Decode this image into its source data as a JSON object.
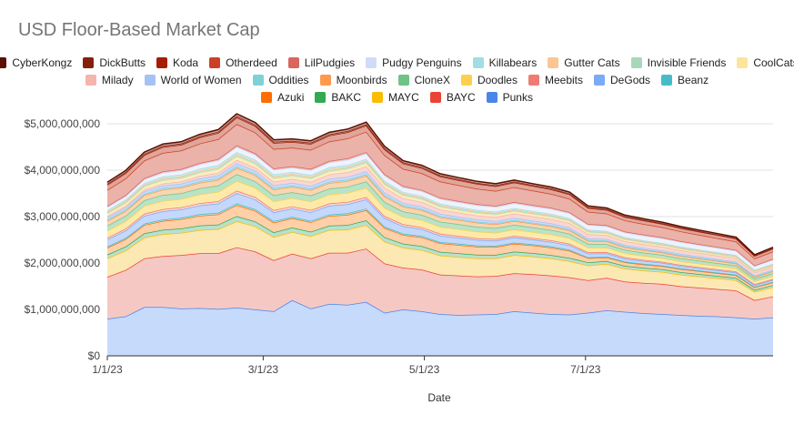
{
  "chart_data": {
    "type": "area",
    "stacked": true,
    "title": "USD Floor-Based Market Cap",
    "xlabel": "Date",
    "ylabel": "",
    "x_range": [
      "2023-01-01",
      "2023-09-10"
    ],
    "ylim": [
      0,
      5000000000
    ],
    "y_ticks": [
      "$0",
      "$1,000,000,000",
      "$2,000,000,000",
      "$3,000,000,000",
      "$4,000,000,000",
      "$5,000,000,000"
    ],
    "x_ticks": [
      "1/1/23",
      "3/1/23",
      "5/1/23",
      "7/1/23"
    ],
    "x_tick_dates": [
      "2023-01-01",
      "2023-03-01",
      "2023-05-01",
      "2023-07-01"
    ],
    "grid": true,
    "legend_position": "top",
    "dates": [
      "2023-01-01",
      "2023-01-08",
      "2023-01-15",
      "2023-01-22",
      "2023-01-29",
      "2023-02-05",
      "2023-02-12",
      "2023-02-19",
      "2023-02-26",
      "2023-03-05",
      "2023-03-12",
      "2023-03-19",
      "2023-03-26",
      "2023-04-02",
      "2023-04-09",
      "2023-04-16",
      "2023-04-23",
      "2023-04-30",
      "2023-05-07",
      "2023-05-14",
      "2023-05-21",
      "2023-05-28",
      "2023-06-04",
      "2023-06-11",
      "2023-06-18",
      "2023-06-25",
      "2023-07-02",
      "2023-07-09",
      "2023-07-16",
      "2023-07-23",
      "2023-07-30",
      "2023-08-06",
      "2023-08-13",
      "2023-08-20",
      "2023-08-27",
      "2023-09-03",
      "2023-09-10"
    ],
    "series": [
      {
        "name": "Punks",
        "color": "#c6dafc",
        "line": "#4a86e8",
        "values": [
          800,
          850,
          1050,
          1050,
          1020,
          1030,
          1010,
          1040,
          1000,
          960,
          1200,
          1020,
          1120,
          1100,
          1160,
          930,
          1000,
          960,
          900,
          880,
          890,
          900,
          960,
          930,
          900,
          890,
          930,
          980,
          950,
          920,
          900,
          880,
          860,
          850,
          830,
          800,
          830
        ]
      },
      {
        "name": "BAYC",
        "color": "#f6c8c4",
        "line": "#ea4335",
        "values": [
          900,
          1000,
          1050,
          1100,
          1150,
          1180,
          1200,
          1300,
          1250,
          1100,
          1000,
          1080,
          1100,
          1120,
          1150,
          1060,
          900,
          900,
          850,
          850,
          820,
          820,
          820,
          830,
          830,
          800,
          700,
          700,
          650,
          650,
          650,
          620,
          610,
          590,
          580,
          400,
          450
        ]
      },
      {
        "name": "MAYC",
        "color": "#fce8b2",
        "line": "#fbbc04",
        "values": [
          400,
          420,
          450,
          470,
          480,
          500,
          520,
          560,
          540,
          500,
          470,
          480,
          490,
          500,
          510,
          470,
          430,
          420,
          410,
          400,
          390,
          380,
          390,
          380,
          370,
          350,
          320,
          300,
          280,
          270,
          260,
          250,
          240,
          230,
          220,
          180,
          200
        ]
      },
      {
        "name": "BAKC",
        "color": "#b7e1cd",
        "line": "#34a853",
        "values": [
          80,
          85,
          90,
          95,
          95,
          100,
          100,
          110,
          105,
          100,
          95,
          95,
          95,
          100,
          100,
          95,
          85,
          85,
          80,
          80,
          78,
          76,
          76,
          75,
          73,
          70,
          66,
          62,
          60,
          58,
          56,
          54,
          52,
          50,
          48,
          42,
          45
        ]
      },
      {
        "name": "Azuki",
        "color": "#ffd0a8",
        "line": "#ff6d01",
        "values": [
          150,
          160,
          180,
          190,
          200,
          210,
          220,
          240,
          230,
          210,
          200,
          205,
          210,
          220,
          220,
          200,
          190,
          190,
          185,
          180,
          175,
          170,
          170,
          165,
          160,
          155,
          90,
          80,
          75,
          70,
          68,
          66,
          64,
          62,
          60,
          55,
          58
        ]
      },
      {
        "name": "Beanz",
        "color": "#b4e4ea",
        "line": "#46bdc6",
        "values": [
          25,
          26,
          28,
          30,
          30,
          32,
          33,
          35,
          34,
          32,
          30,
          30,
          31,
          32,
          32,
          30,
          28,
          27,
          26,
          25,
          25,
          24,
          24,
          23,
          23,
          22,
          18,
          16,
          15,
          15,
          14,
          14,
          13,
          13,
          12,
          11,
          12
        ]
      },
      {
        "name": "DeGods",
        "color": "#c4d8fb",
        "line": "#7baaf7",
        "values": [
          150,
          160,
          170,
          180,
          180,
          190,
          200,
          220,
          210,
          190,
          180,
          185,
          190,
          195,
          200,
          180,
          160,
          150,
          140,
          130,
          120,
          110,
          110,
          100,
          100,
          95,
          80,
          70,
          65,
          60,
          55,
          52,
          50,
          48,
          46,
          40,
          42
        ]
      },
      {
        "name": "Meebits",
        "color": "#fad2cf",
        "line": "#f07b72",
        "values": [
          40,
          42,
          44,
          46,
          46,
          48,
          50,
          54,
          52,
          48,
          46,
          47,
          48,
          49,
          50,
          46,
          42,
          41,
          40,
          39,
          38,
          37,
          37,
          36,
          35,
          34,
          30,
          28,
          27,
          26,
          25,
          24,
          23,
          22,
          21,
          18,
          20
        ]
      },
      {
        "name": "Doodles",
        "color": "#fdeaa8",
        "line": "#fcd04f",
        "values": [
          150,
          160,
          170,
          180,
          180,
          190,
          200,
          210,
          200,
          190,
          180,
          185,
          190,
          195,
          200,
          180,
          160,
          155,
          150,
          145,
          140,
          135,
          135,
          130,
          125,
          120,
          100,
          95,
          90,
          85,
          80,
          78,
          75,
          72,
          70,
          62,
          66
        ]
      },
      {
        "name": "CloneX",
        "color": "#b9e3c6",
        "line": "#71c287",
        "values": [
          110,
          115,
          120,
          125,
          125,
          130,
          135,
          145,
          140,
          130,
          125,
          128,
          130,
          133,
          135,
          125,
          115,
          112,
          110,
          108,
          105,
          102,
          102,
          100,
          98,
          95,
          80,
          75,
          72,
          70,
          68,
          66,
          64,
          62,
          60,
          52,
          56
        ]
      },
      {
        "name": "Moonbirds",
        "color": "#fbd5b0",
        "line": "#ff994d",
        "values": [
          100,
          105,
          110,
          115,
          115,
          120,
          125,
          135,
          130,
          120,
          115,
          117,
          120,
          122,
          125,
          115,
          105,
          100,
          95,
          90,
          85,
          80,
          80,
          78,
          75,
          72,
          62,
          58,
          55,
          52,
          50,
          48,
          46,
          44,
          42,
          36,
          40
        ]
      },
      {
        "name": "Oddities",
        "color": "#b8e6ea",
        "line": "#7ed1d7",
        "values": [
          25,
          26,
          28,
          30,
          30,
          32,
          33,
          35,
          34,
          32,
          30,
          30,
          31,
          32,
          32,
          30,
          28,
          27,
          26,
          25,
          25,
          24,
          24,
          23,
          23,
          22,
          20,
          19,
          18,
          18,
          17,
          17,
          16,
          16,
          15,
          13,
          14
        ]
      },
      {
        "name": "World of Women",
        "color": "#c9dbfa",
        "line": "#a4c2f4",
        "values": [
          50,
          52,
          55,
          58,
          58,
          60,
          62,
          66,
          64,
          60,
          57,
          58,
          59,
          60,
          61,
          57,
          52,
          50,
          48,
          46,
          45,
          44,
          44,
          43,
          42,
          40,
          36,
          34,
          32,
          31,
          30,
          29,
          28,
          27,
          26,
          22,
          24
        ]
      },
      {
        "name": "Milady",
        "color": "#f9d6d3",
        "line": "#f4b5ae",
        "values": [
          30,
          35,
          40,
          45,
          50,
          55,
          60,
          70,
          70,
          80,
          85,
          90,
          95,
          100,
          110,
          105,
          100,
          100,
          95,
          90,
          90,
          90,
          95,
          95,
          95,
          95,
          90,
          85,
          80,
          80,
          78,
          76,
          74,
          72,
          70,
          60,
          65
        ]
      },
      {
        "name": "CoolCats",
        "color": "#fcefbf",
        "line": "#fde49b",
        "values": [
          50,
          52,
          55,
          58,
          58,
          60,
          62,
          66,
          64,
          60,
          57,
          58,
          59,
          60,
          61,
          57,
          52,
          50,
          48,
          46,
          45,
          44,
          44,
          43,
          42,
          40,
          36,
          34,
          32,
          31,
          30,
          29,
          28,
          27,
          26,
          22,
          24
        ]
      },
      {
        "name": "Invisible Friends",
        "color": "#cfeadb",
        "line": "#a8d8b9",
        "values": [
          25,
          26,
          28,
          30,
          30,
          32,
          33,
          35,
          34,
          32,
          30,
          30,
          31,
          32,
          32,
          30,
          28,
          27,
          26,
          25,
          25,
          24,
          24,
          23,
          23,
          22,
          20,
          19,
          18,
          18,
          17,
          17,
          16,
          16,
          15,
          13,
          14
        ]
      },
      {
        "name": "Gutter Cats",
        "color": "#fde0c8",
        "line": "#fbc693",
        "values": [
          20,
          21,
          22,
          24,
          24,
          25,
          26,
          28,
          27,
          25,
          24,
          24,
          25,
          25,
          25,
          24,
          22,
          21,
          20,
          20,
          19,
          19,
          19,
          18,
          18,
          17,
          16,
          15,
          14,
          14,
          13,
          13,
          13,
          12,
          12,
          10,
          11
        ]
      },
      {
        "name": "Killabears",
        "color": "#cdebef",
        "line": "#a2dde4",
        "values": [
          30,
          32,
          34,
          36,
          36,
          38,
          40,
          42,
          41,
          38,
          36,
          37,
          38,
          38,
          39,
          36,
          33,
          32,
          31,
          30,
          29,
          28,
          28,
          27,
          27,
          26,
          24,
          23,
          22,
          21,
          20,
          20,
          19,
          18,
          18,
          15,
          16
        ]
      },
      {
        "name": "Pudgy Penguins",
        "color": "#eef3fd",
        "line": "#cfdcf7",
        "values": [
          70,
          75,
          80,
          85,
          90,
          95,
          100,
          110,
          105,
          100,
          95,
          100,
          105,
          110,
          115,
          110,
          100,
          100,
          100,
          100,
          100,
          100,
          105,
          105,
          105,
          105,
          100,
          100,
          100,
          100,
          100,
          98,
          96,
          94,
          92,
          80,
          85
        ]
      },
      {
        "name": "LilPudgies",
        "color": "#f3c2bd",
        "line": "#d9655d",
        "values": [
          20,
          22,
          24,
          26,
          27,
          28,
          30,
          33,
          32,
          30,
          29,
          30,
          31,
          32,
          33,
          31,
          29,
          28,
          27,
          27,
          26,
          26,
          26,
          26,
          26,
          25,
          24,
          23,
          22,
          22,
          21,
          21,
          20,
          20,
          19,
          17,
          18
        ]
      },
      {
        "name": "Otherdeed",
        "color": "#eab2a8",
        "line": "#cc4125",
        "values": [
          350,
          360,
          380,
          400,
          400,
          420,
          430,
          460,
          450,
          420,
          400,
          410,
          420,
          430,
          440,
          410,
          370,
          360,
          350,
          340,
          330,
          320,
          320,
          310,
          300,
          290,
          260,
          250,
          240,
          230,
          220,
          210,
          200,
          190,
          180,
          150,
          160
        ]
      },
      {
        "name": "Koda",
        "color": "#e0a59b",
        "line": "#a61c00",
        "values": [
          110,
          115,
          120,
          125,
          125,
          130,
          135,
          145,
          140,
          130,
          125,
          128,
          130,
          133,
          135,
          125,
          115,
          112,
          110,
          108,
          105,
          102,
          102,
          100,
          98,
          95,
          85,
          80,
          76,
          74,
          72,
          70,
          68,
          66,
          64,
          55,
          60
        ]
      },
      {
        "name": "DickButts",
        "color": "#d9a49a",
        "line": "#85200c",
        "values": [
          20,
          21,
          22,
          24,
          24,
          25,
          26,
          28,
          27,
          25,
          24,
          24,
          25,
          25,
          25,
          24,
          22,
          21,
          20,
          20,
          19,
          19,
          19,
          18,
          18,
          17,
          16,
          15,
          14,
          14,
          13,
          13,
          13,
          12,
          12,
          10,
          11
        ]
      },
      {
        "name": "CyberKongz",
        "color": "#c9a19a",
        "line": "#5b0f00",
        "values": [
          35,
          37,
          39,
          41,
          41,
          43,
          45,
          48,
          46,
          43,
          41,
          42,
          43,
          44,
          45,
          42,
          38,
          37,
          36,
          35,
          34,
          33,
          33,
          32,
          31,
          30,
          27,
          26,
          25,
          24,
          23,
          22,
          21,
          20,
          19,
          16,
          18
        ]
      }
    ],
    "value_units": "USD millions",
    "legend_order": [
      "CyberKongz",
      "DickButts",
      "Koda",
      "Otherdeed",
      "LilPudgies",
      "Pudgy Penguins",
      "Killabears",
      "Gutter Cats",
      "Invisible Friends",
      "CoolCats",
      "Milady",
      "World of Women",
      "Oddities",
      "Moonbirds",
      "CloneX",
      "Doodles",
      "Meebits",
      "DeGods",
      "Beanz",
      "Azuki",
      "BAKC",
      "MAYC",
      "BAYC",
      "Punks"
    ]
  }
}
